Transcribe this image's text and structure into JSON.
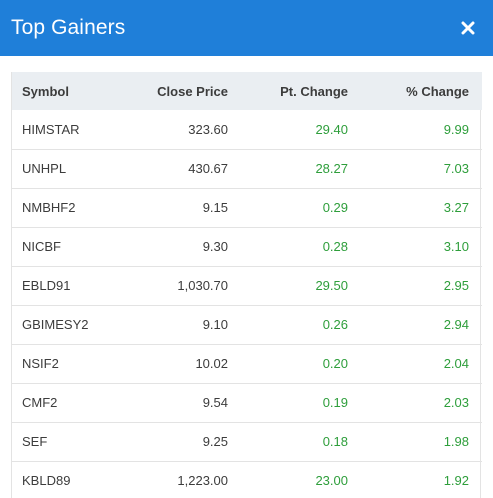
{
  "modal": {
    "title": "Top Gainers"
  },
  "colors": {
    "header_bg": "#1f7fd9",
    "positive": "#2e9e3b",
    "table_header_bg": "#eaeef2"
  },
  "icons": {
    "close": "close-icon"
  },
  "table": {
    "columns": [
      "Symbol",
      "Close Price",
      "Pt. Change",
      "% Change"
    ],
    "rows": [
      {
        "symbol": "HIMSTAR",
        "close": "323.60",
        "pt": "29.40",
        "pct": "9.99"
      },
      {
        "symbol": "UNHPL",
        "close": "430.67",
        "pt": "28.27",
        "pct": "7.03"
      },
      {
        "symbol": "NMBHF2",
        "close": "9.15",
        "pt": "0.29",
        "pct": "3.27"
      },
      {
        "symbol": "NICBF",
        "close": "9.30",
        "pt": "0.28",
        "pct": "3.10"
      },
      {
        "symbol": "EBLD91",
        "close": "1,030.70",
        "pt": "29.50",
        "pct": "2.95"
      },
      {
        "symbol": "GBIMESY2",
        "close": "9.10",
        "pt": "0.26",
        "pct": "2.94"
      },
      {
        "symbol": "NSIF2",
        "close": "10.02",
        "pt": "0.20",
        "pct": "2.04"
      },
      {
        "symbol": "CMF2",
        "close": "9.54",
        "pt": "0.19",
        "pct": "2.03"
      },
      {
        "symbol": "SEF",
        "close": "9.25",
        "pt": "0.18",
        "pct": "1.98"
      },
      {
        "symbol": "KBLD89",
        "close": "1,223.00",
        "pt": "23.00",
        "pct": "1.92"
      }
    ]
  }
}
